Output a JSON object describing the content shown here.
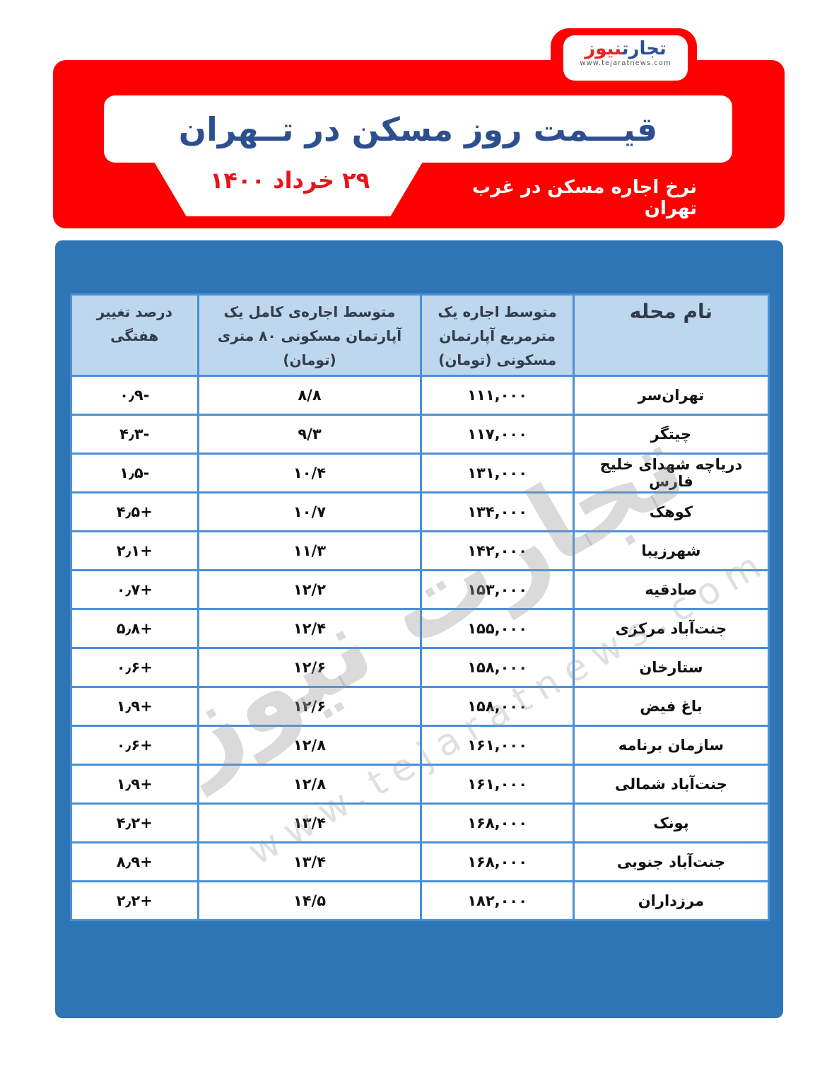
{
  "logo": {
    "brand_a": "تجارت",
    "brand_b": "نیوز",
    "url": "www.tejaratnews.com"
  },
  "header": {
    "title": "قیـــمت روز مسکن در تــهران",
    "date": "۲۹ خرداد ۱۴۰۰",
    "subtitle": "نرخ اجاره مسکن در غرب تهران"
  },
  "colors": {
    "banner": "#fe0000",
    "panel": "#2e75b6",
    "header_row": "#bdd7ee",
    "title": "#2e4f8f"
  },
  "table": {
    "columns": [
      "نام محله",
      "متوسط اجاره یک مترمربع آپارتمان مسکونی (تومان)",
      "متوسط اجاره‌ی کامل یک آپارتمان مسکونی ۸۰ متری (تومان)",
      "درصد تغییر هفتگی"
    ],
    "rows": [
      [
        "تهران‌سر",
        "۱۱۱,۰۰۰",
        "۸/۸",
        "-۰٫۹"
      ],
      [
        "چیتگر",
        "۱۱۷,۰۰۰",
        "۹/۳",
        "-۴٫۳"
      ],
      [
        "دریاچه شهدای خلیج فارس",
        "۱۳۱,۰۰۰",
        "۱۰/۴",
        "-۱٫۵"
      ],
      [
        "کوهک",
        "۱۳۴,۰۰۰",
        "۱۰/۷",
        "+۴٫۵"
      ],
      [
        "شهرزیبا",
        "۱۴۲,۰۰۰",
        "۱۱/۳",
        "+۲٫۱"
      ],
      [
        "صادقیه",
        "۱۵۳,۰۰۰",
        "۱۲/۲",
        "+۰٫۷"
      ],
      [
        "جنت‌آباد مرکزی",
        "۱۵۵,۰۰۰",
        "۱۲/۴",
        "+۵٫۸"
      ],
      [
        "ستارخان",
        "۱۵۸,۰۰۰",
        "۱۲/۶",
        "+۰٫۶"
      ],
      [
        "باغ فیض",
        "۱۵۸,۰۰۰",
        "۱۲/۶",
        "+۱٫۹"
      ],
      [
        "سازمان برنامه",
        "۱۶۱,۰۰۰",
        "۱۲/۸",
        "+۰٫۶"
      ],
      [
        "جنت‌آباد شمالی",
        "۱۶۱,۰۰۰",
        "۱۲/۸",
        "+۱٫۹"
      ],
      [
        "پونک",
        "۱۶۸,۰۰۰",
        "۱۳/۴",
        "+۴٫۲"
      ],
      [
        "جنت‌آباد جنوبی",
        "۱۶۸,۰۰۰",
        "۱۳/۴",
        "+۸٫۹"
      ],
      [
        "مرزداران",
        "۱۸۲,۰۰۰",
        "۱۴/۵",
        "+۲٫۲"
      ]
    ]
  },
  "watermark": {
    "text": "تجارت نیوز",
    "url": "www.tejaratnews.com"
  }
}
